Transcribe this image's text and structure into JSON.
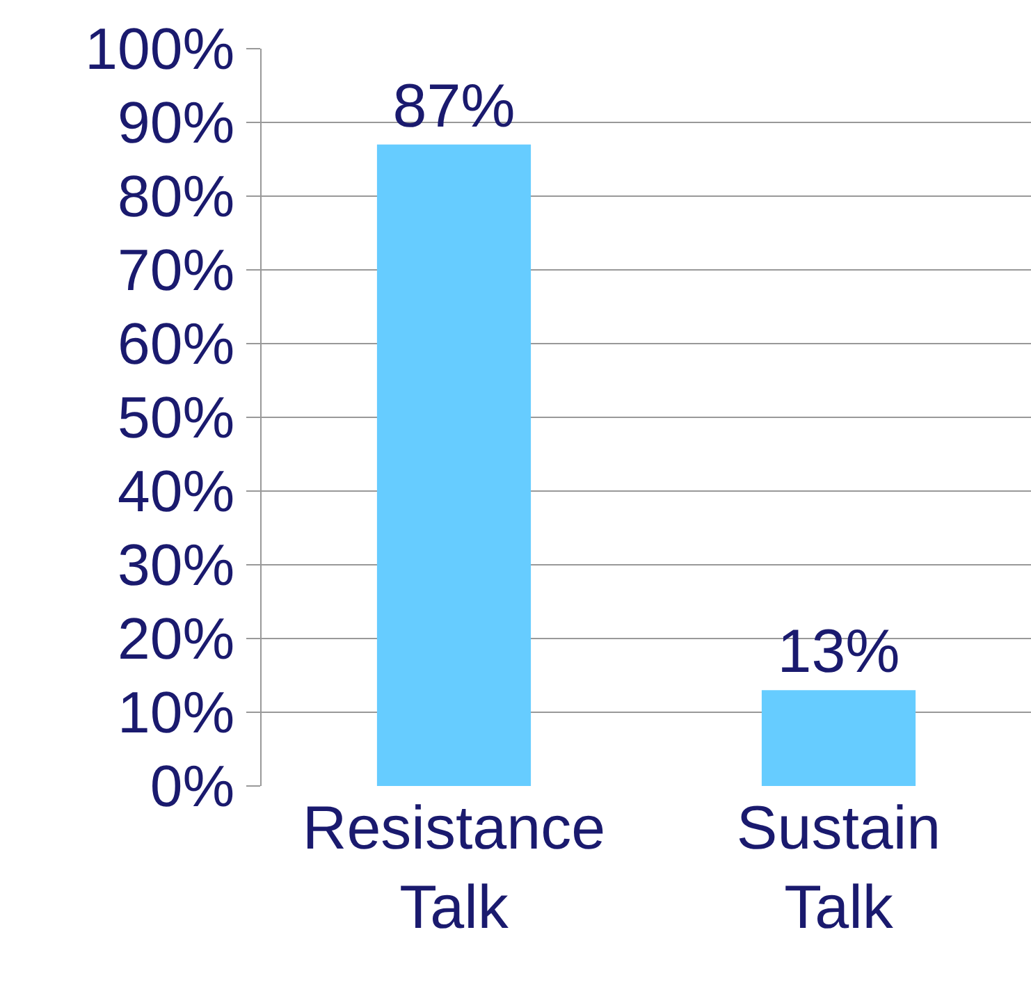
{
  "chart_data": {
    "type": "bar",
    "categories": [
      "Resistance Talk",
      "Sustain Talk"
    ],
    "values": [
      87,
      13
    ],
    "color": "#66ccff",
    "value_labels": [
      "87%",
      "13%"
    ],
    "ylim": [
      0,
      100
    ],
    "yticks": [
      {
        "value": 0,
        "label": "0%"
      },
      {
        "value": 10,
        "label": "10%"
      },
      {
        "value": 20,
        "label": "20%"
      },
      {
        "value": 30,
        "label": "30%"
      },
      {
        "value": 40,
        "label": "40%"
      },
      {
        "value": 50,
        "label": "50%"
      },
      {
        "value": 60,
        "label": "60%"
      },
      {
        "value": 70,
        "label": "70%"
      },
      {
        "value": 80,
        "label": "80%"
      },
      {
        "value": 90,
        "label": "90%"
      },
      {
        "value": 100,
        "label": "100%"
      }
    ],
    "grid": "y",
    "legend": false
  }
}
